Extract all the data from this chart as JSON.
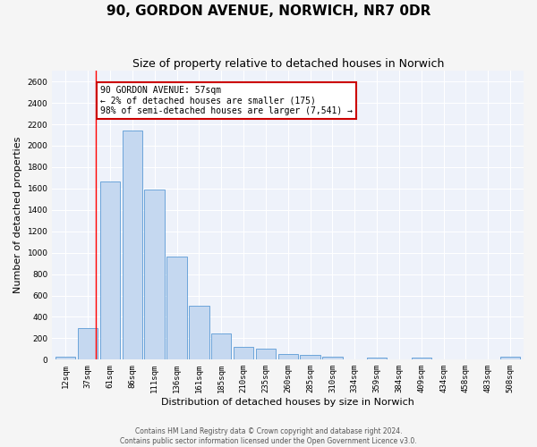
{
  "title": "90, GORDON AVENUE, NORWICH, NR7 0DR",
  "subtitle": "Size of property relative to detached houses in Norwich",
  "xlabel": "Distribution of detached houses by size in Norwich",
  "ylabel": "Number of detached properties",
  "bar_labels": [
    "12sqm",
    "37sqm",
    "61sqm",
    "86sqm",
    "111sqm",
    "136sqm",
    "161sqm",
    "185sqm",
    "210sqm",
    "235sqm",
    "260sqm",
    "285sqm",
    "310sqm",
    "334sqm",
    "359sqm",
    "384sqm",
    "409sqm",
    "434sqm",
    "458sqm",
    "483sqm",
    "508sqm"
  ],
  "bar_values": [
    25,
    295,
    1665,
    2140,
    1590,
    960,
    500,
    245,
    120,
    100,
    50,
    45,
    30,
    5,
    20,
    5,
    20,
    5,
    5,
    5,
    30
  ],
  "bar_color": "#c5d8f0",
  "bar_edge_color": "#5b9bd5",
  "ylim": [
    0,
    2700
  ],
  "yticks": [
    0,
    200,
    400,
    600,
    800,
    1000,
    1200,
    1400,
    1600,
    1800,
    2000,
    2200,
    2400,
    2600
  ],
  "red_line_x": 1.35,
  "annotation_text": "90 GORDON AVENUE: 57sqm\n← 2% of detached houses are smaller (175)\n98% of semi-detached houses are larger (7,541) →",
  "annotation_box_color": "#ffffff",
  "annotation_box_edge_color": "#cc0000",
  "footer_line1": "Contains HM Land Registry data © Crown copyright and database right 2024.",
  "footer_line2": "Contains public sector information licensed under the Open Government Licence v3.0.",
  "bg_color": "#eef2fa",
  "grid_color": "#ffffff",
  "title_fontsize": 11,
  "subtitle_fontsize": 9,
  "tick_fontsize": 6.5,
  "ylabel_fontsize": 8,
  "xlabel_fontsize": 8,
  "footer_fontsize": 5.5,
  "annot_fontsize": 7
}
